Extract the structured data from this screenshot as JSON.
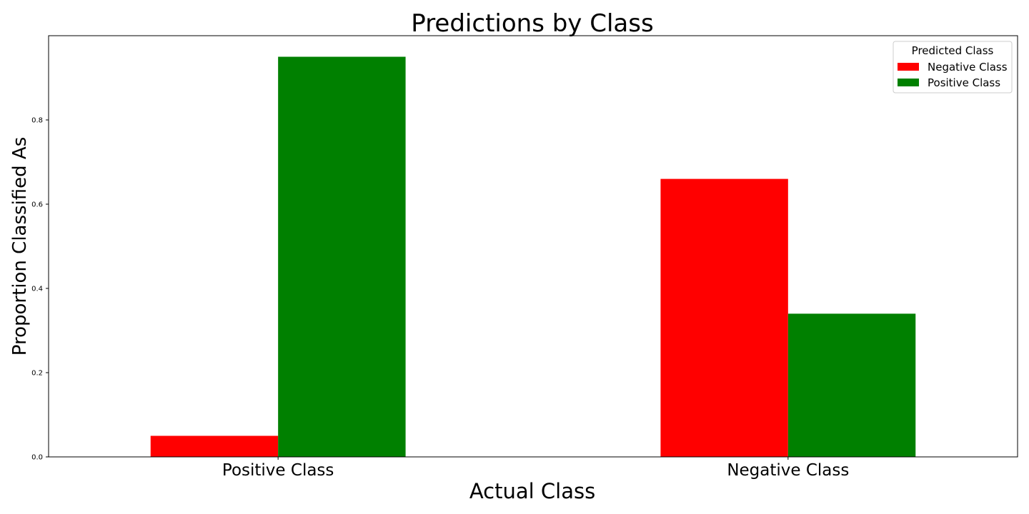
{
  "chart_data": {
    "type": "bar",
    "title": "Predictions by Class",
    "xlabel": "Actual Class",
    "ylabel": "Proportion Classified As",
    "categories": [
      "Positive Class",
      "Negative Class"
    ],
    "series": [
      {
        "name": "Negative Class",
        "values": [
          0.05,
          0.66
        ],
        "color": "#ff0000"
      },
      {
        "name": "Positive Class",
        "values": [
          0.95,
          0.34
        ],
        "color": "#008000"
      }
    ],
    "ylim": [
      0,
      1.0
    ],
    "yticks": [
      0.0,
      0.2,
      0.4,
      0.6,
      0.8
    ],
    "ytick_labels": [
      "0.0",
      "0.2",
      "0.4",
      "0.6",
      "0.8"
    ],
    "legend": {
      "title": "Predicted Class",
      "placement": "top-right"
    },
    "grid": false
  }
}
